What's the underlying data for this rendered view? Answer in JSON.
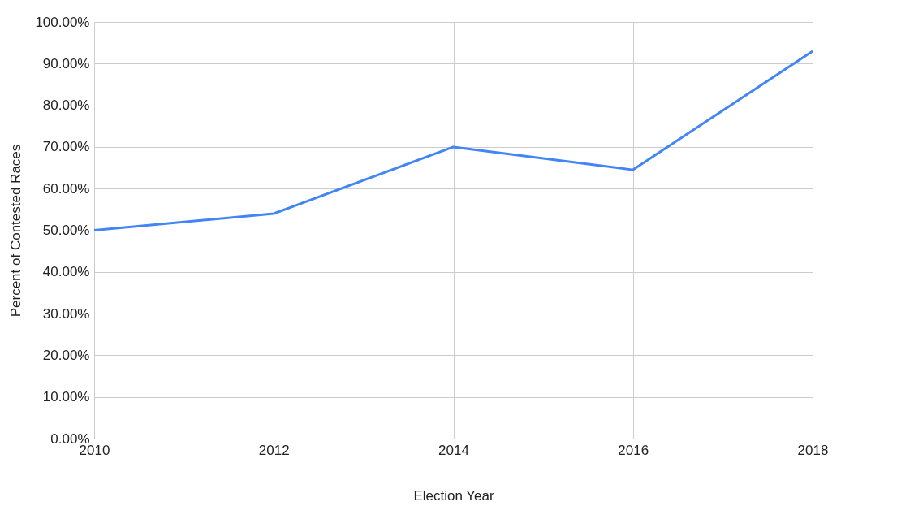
{
  "chart_data": {
    "type": "line",
    "xlabel": "Election Year",
    "ylabel": "Percent of Contested Races",
    "x": [
      2010,
      2012,
      2014,
      2016,
      2018
    ],
    "series": [
      {
        "color": "#4285f4",
        "values": [
          50,
          54,
          70,
          64.5,
          93
        ]
      }
    ],
    "xlim": [
      2010,
      2018
    ],
    "xticks": [
      2010,
      2012,
      2014,
      2016,
      2018
    ],
    "ylim": [
      0,
      100
    ],
    "yticks": [
      {
        "value": 0,
        "label": "0.00%"
      },
      {
        "value": 10,
        "label": "10.00%"
      },
      {
        "value": 20,
        "label": "20.00%"
      },
      {
        "value": 30,
        "label": "30.00%"
      },
      {
        "value": 40,
        "label": "40.00%"
      },
      {
        "value": 50,
        "label": "50.00%"
      },
      {
        "value": 60,
        "label": "60.00%"
      },
      {
        "value": 70,
        "label": "70.00%"
      },
      {
        "value": 80,
        "label": "80.00%"
      },
      {
        "value": 90,
        "label": "90.00%"
      },
      {
        "value": 100,
        "label": "100.00%"
      }
    ],
    "grid": true,
    "marker": "none",
    "line_style": "solid"
  }
}
